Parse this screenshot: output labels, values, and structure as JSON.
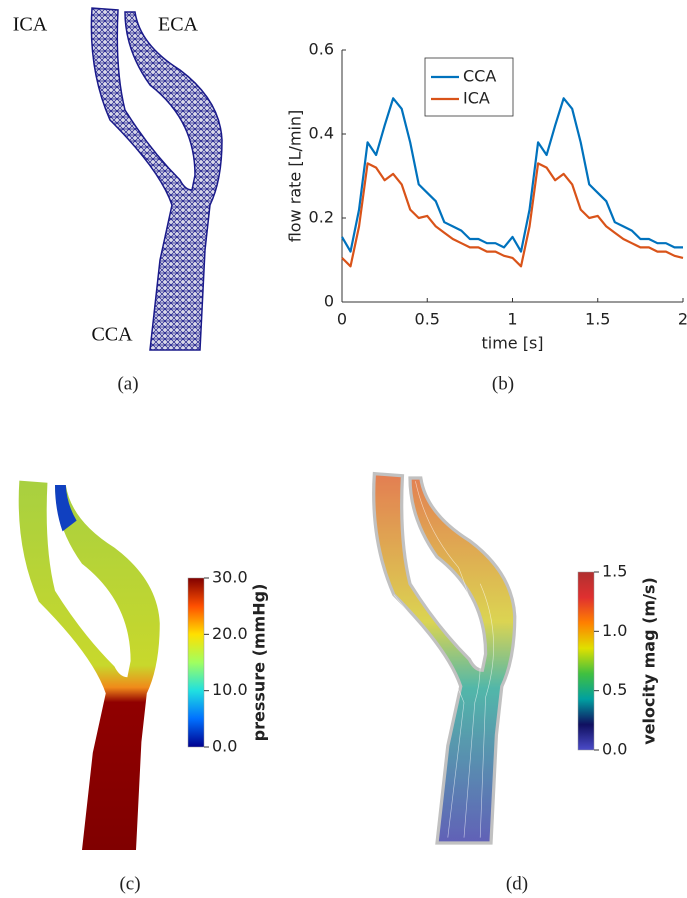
{
  "chart_data": {
    "type": "line",
    "xlabel": "time [s]",
    "ylabel": "flow rate [L/min]",
    "x": [
      0,
      0.05,
      0.1,
      0.15,
      0.2,
      0.25,
      0.3,
      0.35,
      0.4,
      0.45,
      0.5,
      0.55,
      0.6,
      0.65,
      0.7,
      0.75,
      0.8,
      0.85,
      0.9,
      0.95,
      1,
      1.05,
      1.1,
      1.15,
      1.2,
      1.25,
      1.3,
      1.35,
      1.4,
      1.45,
      1.5,
      1.55,
      1.6,
      1.65,
      1.7,
      1.75,
      1.8,
      1.85,
      1.9,
      1.95,
      2
    ],
    "series": [
      {
        "name": "CCA",
        "color": "#0072bd",
        "values": [
          0.155,
          0.12,
          0.22,
          0.38,
          0.35,
          0.42,
          0.485,
          0.46,
          0.38,
          0.28,
          0.26,
          0.24,
          0.19,
          0.18,
          0.17,
          0.15,
          0.15,
          0.14,
          0.14,
          0.13,
          0.155,
          0.12,
          0.22,
          0.38,
          0.35,
          0.42,
          0.485,
          0.46,
          0.38,
          0.28,
          0.26,
          0.24,
          0.19,
          0.18,
          0.17,
          0.15,
          0.15,
          0.14,
          0.14,
          0.13,
          0.13
        ]
      },
      {
        "name": "ICA",
        "color": "#d95319",
        "values": [
          0.105,
          0.085,
          0.18,
          0.33,
          0.32,
          0.29,
          0.305,
          0.28,
          0.22,
          0.2,
          0.205,
          0.18,
          0.165,
          0.15,
          0.14,
          0.13,
          0.13,
          0.12,
          0.12,
          0.11,
          0.105,
          0.085,
          0.18,
          0.33,
          0.32,
          0.29,
          0.305,
          0.28,
          0.22,
          0.2,
          0.205,
          0.18,
          0.165,
          0.15,
          0.14,
          0.13,
          0.13,
          0.12,
          0.12,
          0.11,
          0.105
        ]
      }
    ],
    "xlim": [
      0,
      2
    ],
    "ylim": [
      0,
      0.6
    ],
    "xticks": [
      0,
      0.5,
      1,
      1.5,
      2
    ],
    "yticks": [
      0,
      0.2,
      0.4,
      0.6
    ],
    "legend": "upper center"
  },
  "panels": {
    "a": {
      "caption": "(a)",
      "labels": [
        "ICA",
        "ECA",
        "CCA"
      ]
    },
    "b": {
      "caption": "(b)"
    },
    "c": {
      "caption": "(c)",
      "colorbar": {
        "title": "pressure (mmHg)",
        "lim": [
          0,
          30
        ],
        "ticks": [
          {
            "value": 0,
            "label": "0.0"
          },
          {
            "value": 10,
            "label": "10.0"
          },
          {
            "value": 20,
            "label": "20.0"
          },
          {
            "value": 30,
            "label": "30.0"
          }
        ],
        "colors": [
          "#00008f",
          "#0070ff",
          "#20e0e0",
          "#a0ff60",
          "#ffe000",
          "#ff5000",
          "#800000"
        ]
      }
    },
    "d": {
      "caption": "(d)",
      "colorbar": {
        "title": "velocity mag (m/s)",
        "lim": [
          0,
          1.5
        ],
        "ticks": [
          {
            "value": 0,
            "label": "0.0"
          },
          {
            "value": 0.5,
            "label": "0.5"
          },
          {
            "value": 1,
            "label": "1.0"
          },
          {
            "value": 1.5,
            "label": "1.5"
          }
        ],
        "colors": [
          "#4b4bc8",
          "#101060",
          "#00a0a0",
          "#40c040",
          "#e0e000",
          "#ff8000",
          "#e03030",
          "#b03030"
        ]
      }
    }
  }
}
